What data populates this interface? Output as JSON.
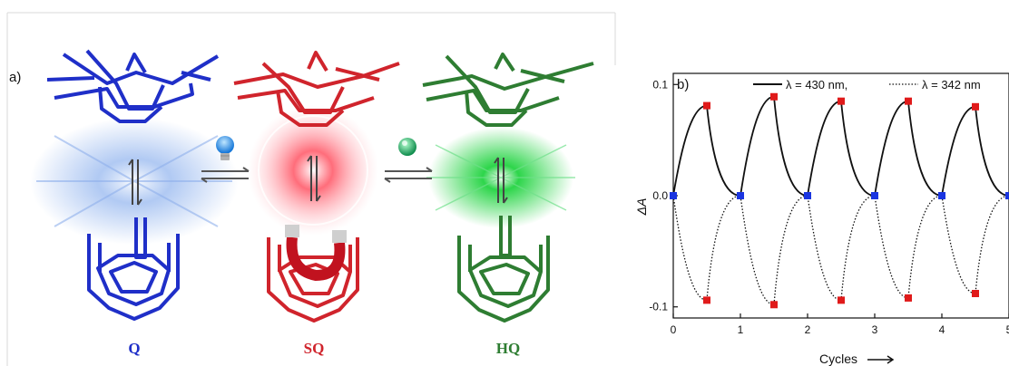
{
  "panel_a": {
    "label": "a)",
    "states": [
      {
        "name": "Q",
        "color": "#1f2fc8",
        "glow": "#7fa6e6"
      },
      {
        "name": "SQ",
        "color": "#d0242c",
        "glow": "#ff6d7a"
      },
      {
        "name": "HQ",
        "color": "#2e7d32",
        "glow": "#27d645"
      }
    ],
    "icons": [
      "light-bulb-icon",
      "green-sphere-icon",
      "magnet-icon"
    ]
  },
  "panel_b": {
    "label": "b)",
    "legend_solid_prefix": "λ = 430 nm,",
    "legend_dotted": "λ = 342 nm"
  },
  "chart_data": {
    "type": "line",
    "xlabel": "Cycles",
    "ylabel": "ΔA",
    "xlim": [
      0,
      5
    ],
    "ylim": [
      -0.11,
      0.11
    ],
    "xticks": [
      "0",
      "1",
      "2",
      "3",
      "4",
      "5"
    ],
    "yticks": [
      "0.1",
      "0.0",
      "-0.1"
    ],
    "legend": "top",
    "series": [
      {
        "name": "λ = 430 nm",
        "style": "solid",
        "x": [
          0,
          0.5,
          1,
          1.5,
          2,
          2.5,
          3,
          3.5,
          4,
          4.5,
          5
        ],
        "y": [
          0,
          0.081,
          0,
          0.089,
          0,
          0.085,
          0,
          0.085,
          0,
          0.08,
          0
        ]
      },
      {
        "name": "λ = 342 nm",
        "style": "dotted",
        "x": [
          0,
          0.5,
          1,
          1.5,
          2,
          2.5,
          3,
          3.5,
          4,
          4.5,
          5
        ],
        "y": [
          0,
          -0.094,
          0,
          -0.098,
          0,
          -0.094,
          0,
          -0.092,
          0,
          -0.088,
          0
        ]
      }
    ],
    "marker_colors": {
      "zero": "#1a35e0",
      "peak": "#e01a1a"
    }
  }
}
